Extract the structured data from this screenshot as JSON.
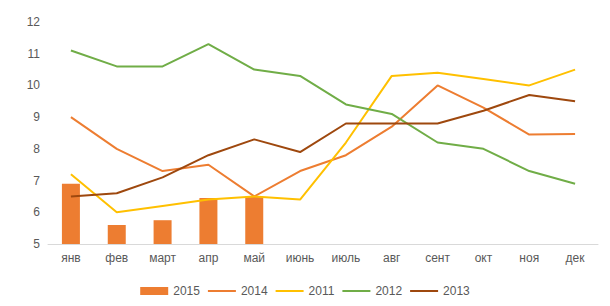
{
  "chart_data": {
    "type": "line",
    "categories": [
      "янв",
      "фев",
      "март",
      "апр",
      "май",
      "июнь",
      "июль",
      "авг",
      "сент",
      "окт",
      "ноя",
      "дек"
    ],
    "series": [
      {
        "name": "2015",
        "type": "bar",
        "color": "#ED7D31",
        "values": [
          6.9,
          5.6,
          5.75,
          6.45,
          6.5,
          null,
          null,
          null,
          null,
          null,
          null,
          null
        ]
      },
      {
        "name": "2014",
        "type": "line",
        "color": "#ED7D31",
        "values": [
          9.0,
          8.0,
          7.3,
          7.5,
          6.5,
          7.3,
          7.8,
          8.7,
          10.0,
          9.3,
          8.45,
          8.47
        ]
      },
      {
        "name": "2011",
        "type": "line",
        "color": "#FFC000",
        "values": [
          7.2,
          6.0,
          6.2,
          6.4,
          6.5,
          6.4,
          8.2,
          10.3,
          10.4,
          10.2,
          10.0,
          10.5
        ]
      },
      {
        "name": "2012",
        "type": "line",
        "color": "#70AD47",
        "values": [
          11.1,
          10.6,
          10.6,
          11.3,
          10.5,
          10.3,
          9.4,
          9.1,
          8.2,
          8.0,
          7.3,
          6.9
        ]
      },
      {
        "name": "2013",
        "type": "line",
        "color": "#9E480E",
        "values": [
          6.5,
          6.6,
          7.1,
          7.8,
          8.3,
          7.9,
          8.8,
          8.8,
          8.8,
          9.2,
          9.7,
          9.5
        ]
      }
    ],
    "ylim": [
      5,
      12
    ],
    "yticks": [
      5,
      6,
      7,
      8,
      9,
      10,
      11,
      12
    ],
    "grid": false,
    "legend": "bottom"
  }
}
